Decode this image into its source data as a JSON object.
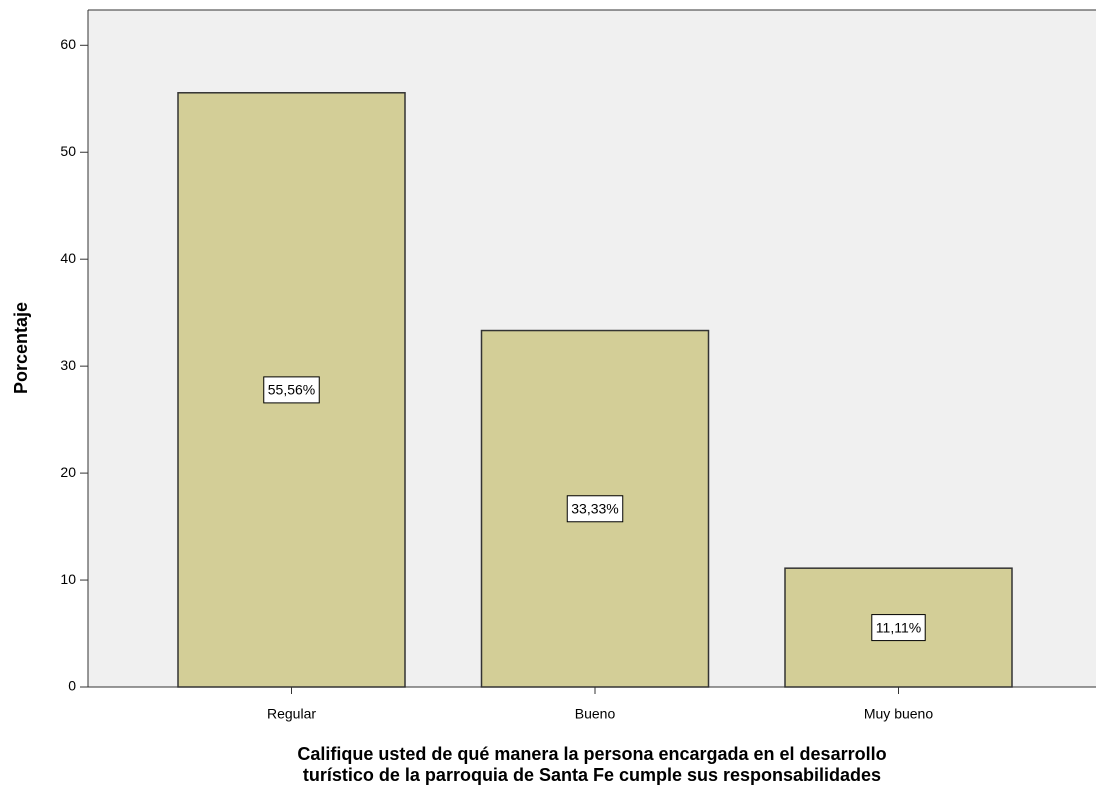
{
  "chart_data": {
    "type": "bar",
    "categories": [
      "Regular",
      "Bueno",
      "Muy bueno"
    ],
    "values": [
      55.56,
      33.33,
      11.11
    ],
    "value_labels": [
      "55,56%",
      "33,33%",
      "11,11%"
    ],
    "color": "#d3ce97",
    "ylabel": "Porcentaje",
    "xlabel": [
      "Califique usted de qué manera la persona encargada en el desarrollo",
      "turístico de la parroquia de Santa Fe cumple sus responsabilidades"
    ],
    "ylim": [
      0,
      63.3
    ],
    "yticks": [
      0,
      10,
      20,
      30,
      40,
      50,
      60
    ]
  }
}
